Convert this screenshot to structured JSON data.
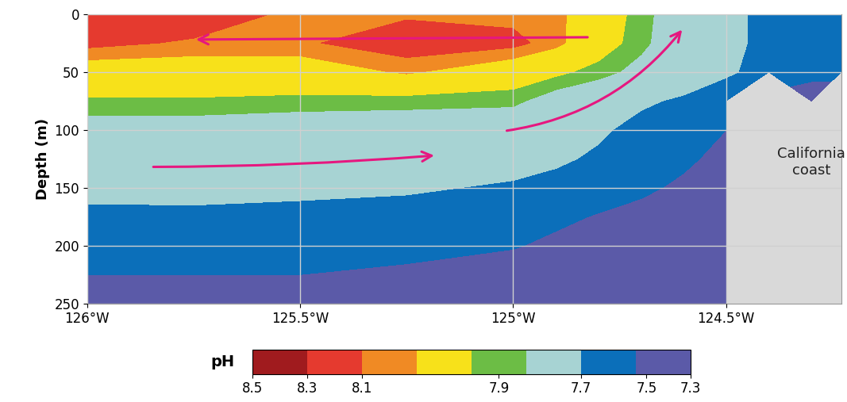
{
  "chart_data": {
    "type": "contour",
    "ylabel": "Depth (m)",
    "annotation": "California\ncoast",
    "x": [
      -126,
      -125.75,
      -125.5,
      -125.25,
      -125.0,
      -124.9,
      -124.8,
      -124.7,
      -124.6,
      -124.5,
      -124.4,
      -124.3,
      -124.23
    ],
    "y": [
      0,
      25,
      50,
      75,
      100,
      125,
      150,
      175,
      200,
      225,
      250
    ],
    "cells": [
      [
        8.15,
        8.15,
        8.08,
        8.09,
        8.08,
        8.07,
        7.99,
        7.9,
        7.8,
        7.75,
        7.65,
        7.62,
        7.6
      ],
      [
        8.12,
        8.09,
        8.09,
        8.14,
        8.12,
        8.07,
        7.98,
        7.89,
        7.8,
        7.75,
        7.65,
        7.62,
        7.6
      ],
      [
        8.0,
        8.0,
        8.0,
        8.06,
        7.99,
        7.95,
        7.9,
        7.84,
        7.78,
        7.72,
        7.65,
        7.6,
        7.6
      ],
      [
        7.92,
        7.92,
        7.91,
        7.9,
        7.89,
        7.82,
        7.78,
        7.72,
        7.68,
        7.62,
        null,
        7.45,
        null
      ],
      [
        7.82,
        7.82,
        7.8,
        7.8,
        7.79,
        7.75,
        7.72,
        7.66,
        7.6,
        7.55,
        null,
        null,
        null
      ],
      [
        7.8,
        7.8,
        7.8,
        7.79,
        7.76,
        7.72,
        7.68,
        7.63,
        7.58,
        7.5,
        null,
        null,
        null
      ],
      [
        7.75,
        7.76,
        7.74,
        7.72,
        7.68,
        7.66,
        7.62,
        7.58,
        7.52,
        7.48,
        null,
        null,
        null
      ],
      [
        7.66,
        7.66,
        7.65,
        7.64,
        7.62,
        7.58,
        7.54,
        7.5,
        7.47,
        7.45,
        null,
        null,
        null
      ],
      [
        7.62,
        7.62,
        7.62,
        7.6,
        7.56,
        7.52,
        7.48,
        7.46,
        7.45,
        7.43,
        null,
        null,
        null
      ],
      [
        7.55,
        7.55,
        7.55,
        7.52,
        7.48,
        7.46,
        7.44,
        7.43,
        7.42,
        7.4,
        null,
        null,
        null
      ],
      [
        7.45,
        7.45,
        7.45,
        7.44,
        7.42,
        7.41,
        7.4,
        7.39,
        7.38,
        7.37,
        null,
        null,
        null
      ]
    ],
    "xlim": [
      -126,
      -124.23
    ],
    "ylim": [
      250,
      0
    ],
    "xticks": [
      {
        "value": -126,
        "label": "126°W"
      },
      {
        "value": -125.5,
        "label": "125.5°W"
      },
      {
        "value": -125,
        "label": "125°W"
      },
      {
        "value": -124.5,
        "label": "124.5°W"
      }
    ],
    "yticks": [
      0,
      50,
      100,
      150,
      200,
      250
    ],
    "grid": true,
    "colorbar": {
      "label": "pH",
      "range": [
        8.5,
        7.3
      ],
      "ticks": [
        8.5,
        8.3,
        8.1,
        7.9,
        7.7,
        7.5,
        7.3
      ],
      "levels": [
        7.3,
        7.55,
        7.7,
        7.87,
        7.93,
        8.05,
        8.1,
        8.3,
        8.5
      ],
      "colors": [
        "#5b5aa8",
        "#0b6fba",
        "#a7d3d3",
        "#6cbd45",
        "#f7e11a",
        "#f08a24",
        "#e53a2f",
        "#a01b1e"
      ]
    }
  }
}
